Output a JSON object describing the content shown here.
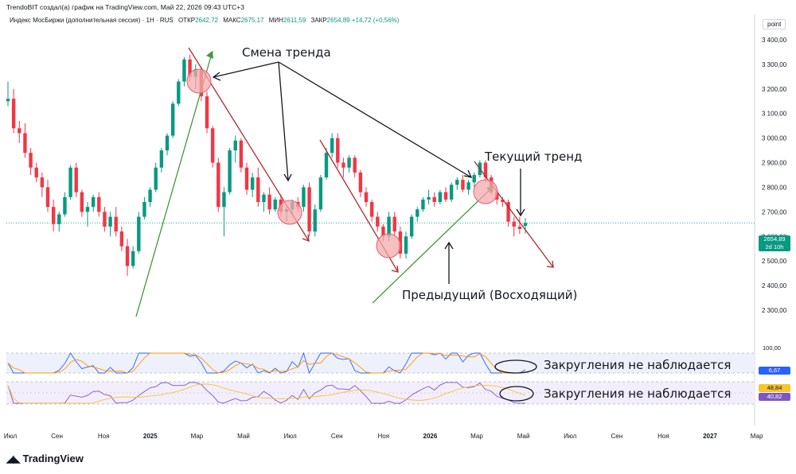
{
  "header": {
    "credit": "TrendoBIT создал(а) график на TradingView.com, Май 22, 2026 09:43 UTC+3",
    "symbol": "Индекс МосБиржи (дополнительная сессия) · 1Н · RUS",
    "open_label": "ОТКР",
    "open": "2642,72",
    "high_label": "МАКС",
    "high": "2675,17",
    "low_label": "МИН",
    "low": "2611,59",
    "close_label": "ЗАКР",
    "close": "2654,89",
    "change": "+14,72 (+0,56%)"
  },
  "axis_unit": "point",
  "annotations": {
    "trend_change": "Смена тренда",
    "current_trend": "Текущий тренд",
    "previous_trend": "Предыдущий (Восходящий)",
    "no_rounding_1": "Закругления не наблюдается",
    "no_rounding_2": "Закругления не наблюдается"
  },
  "badges": {
    "last_price": "2654,89",
    "last_time": "2d 10h",
    "stoch_level": "100,00",
    "stoch_value": "6,67",
    "rsi_value_1": "48,84",
    "rsi_value_2": "40,82"
  },
  "colors": {
    "up": "#089981",
    "down": "#f23645",
    "trend_red": "#b22a2e",
    "trend_green": "#3f9a3a",
    "stoch_blue": "#2962ff",
    "stoch_orange": "#ff9800",
    "rsi_purple": "#7e57c2",
    "rsi_yellow": "#f7c52d"
  },
  "branding": {
    "logo": "TradingView",
    "logo_icon": "tradingview-logo-icon"
  },
  "chart_data": {
    "type": "candlestick",
    "y_ticks": [
      "3 400,00",
      "3 300,00",
      "3 200,00",
      "3 100,00",
      "3 000,00",
      "2 900,00",
      "2 800,00",
      "2 700,00",
      "2 600,00",
      "2 500,00",
      "2 400,00",
      "2 300,00"
    ],
    "ylim": [
      2260,
      3430
    ],
    "x_ticks": [
      {
        "label": "Июл",
        "bold": false
      },
      {
        "label": "Сен",
        "bold": false
      },
      {
        "label": "Ноя",
        "bold": false
      },
      {
        "label": "2025",
        "bold": true
      },
      {
        "label": "Мар",
        "bold": false
      },
      {
        "label": "Май",
        "bold": false
      },
      {
        "label": "Июл",
        "bold": false
      },
      {
        "label": "Сен",
        "bold": false
      },
      {
        "label": "Ноя",
        "bold": false
      },
      {
        "label": "2026",
        "bold": true
      },
      {
        "label": "Мар",
        "bold": false
      },
      {
        "label": "Май",
        "bold": false
      },
      {
        "label": "Июл",
        "bold": false
      },
      {
        "label": "Сен",
        "bold": false
      },
      {
        "label": "Ноя",
        "bold": false
      },
      {
        "label": "2027",
        "bold": true
      },
      {
        "label": "Мар",
        "bold": false
      }
    ],
    "candles": [
      [
        3150,
        3230,
        3130,
        3160
      ],
      [
        3160,
        3200,
        3020,
        3040
      ],
      [
        3040,
        3070,
        2980,
        3020
      ],
      [
        3020,
        3060,
        2920,
        2940
      ],
      [
        2940,
        2960,
        2850,
        2880
      ],
      [
        2880,
        2900,
        2820,
        2840
      ],
      [
        2840,
        2860,
        2760,
        2800
      ],
      [
        2800,
        2830,
        2700,
        2720
      ],
      [
        2720,
        2750,
        2620,
        2650
      ],
      [
        2650,
        2700,
        2620,
        2690
      ],
      [
        2690,
        2780,
        2680,
        2760
      ],
      [
        2760,
        2890,
        2750,
        2880
      ],
      [
        2880,
        2900,
        2760,
        2780
      ],
      [
        2780,
        2790,
        2680,
        2700
      ],
      [
        2700,
        2740,
        2640,
        2720
      ],
      [
        2720,
        2770,
        2700,
        2760
      ],
      [
        2760,
        2780,
        2680,
        2700
      ],
      [
        2700,
        2720,
        2620,
        2640
      ],
      [
        2640,
        2700,
        2600,
        2680
      ],
      [
        2680,
        2720,
        2600,
        2620
      ],
      [
        2620,
        2640,
        2540,
        2560
      ],
      [
        2560,
        2590,
        2440,
        2480
      ],
      [
        2480,
        2560,
        2470,
        2540
      ],
      [
        2540,
        2700,
        2530,
        2680
      ],
      [
        2680,
        2760,
        2670,
        2740
      ],
      [
        2740,
        2800,
        2720,
        2790
      ],
      [
        2790,
        2900,
        2780,
        2880
      ],
      [
        2880,
        2960,
        2860,
        2950
      ],
      [
        2950,
        3020,
        2930,
        3010
      ],
      [
        3010,
        3150,
        3000,
        3140
      ],
      [
        3140,
        3240,
        3130,
        3230
      ],
      [
        3230,
        3330,
        3210,
        3320
      ],
      [
        3320,
        3340,
        3230,
        3250
      ],
      [
        3250,
        3300,
        3200,
        3280
      ],
      [
        3280,
        3290,
        3150,
        3170
      ],
      [
        3170,
        3190,
        3020,
        3040
      ],
      [
        3040,
        3050,
        2880,
        2900
      ],
      [
        2900,
        2920,
        2700,
        2720
      ],
      [
        2720,
        2800,
        2600,
        2780
      ],
      [
        2780,
        2960,
        2770,
        2950
      ],
      [
        2950,
        3010,
        2900,
        2990
      ],
      [
        2990,
        3000,
        2860,
        2880
      ],
      [
        2880,
        2900,
        2770,
        2790
      ],
      [
        2790,
        2860,
        2760,
        2840
      ],
      [
        2840,
        2880,
        2720,
        2740
      ],
      [
        2740,
        2780,
        2700,
        2770
      ],
      [
        2770,
        2800,
        2690,
        2710
      ],
      [
        2710,
        2760,
        2700,
        2750
      ],
      [
        2750,
        2770,
        2680,
        2700
      ],
      [
        2700,
        2720,
        2660,
        2710
      ],
      [
        2710,
        2750,
        2690,
        2740
      ],
      [
        2740,
        2760,
        2700,
        2720
      ],
      [
        2720,
        2810,
        2700,
        2800
      ],
      [
        2800,
        2820,
        2600,
        2620
      ],
      [
        2620,
        2730,
        2600,
        2710
      ],
      [
        2710,
        2850,
        2700,
        2840
      ],
      [
        2840,
        2960,
        2830,
        2940
      ],
      [
        2940,
        3020,
        2920,
        3000
      ],
      [
        3000,
        3020,
        2880,
        2900
      ],
      [
        2900,
        2920,
        2840,
        2880
      ],
      [
        2880,
        2930,
        2860,
        2920
      ],
      [
        2920,
        2930,
        2840,
        2860
      ],
      [
        2860,
        2870,
        2760,
        2780
      ],
      [
        2780,
        2800,
        2720,
        2740
      ],
      [
        2740,
        2750,
        2660,
        2680
      ],
      [
        2680,
        2700,
        2620,
        2640
      ],
      [
        2640,
        2650,
        2580,
        2600
      ],
      [
        2600,
        2700,
        2580,
        2680
      ],
      [
        2680,
        2700,
        2600,
        2620
      ],
      [
        2620,
        2640,
        2510,
        2530
      ],
      [
        2530,
        2620,
        2510,
        2600
      ],
      [
        2600,
        2690,
        2590,
        2680
      ],
      [
        2680,
        2720,
        2660,
        2710
      ],
      [
        2710,
        2760,
        2700,
        2750
      ],
      [
        2750,
        2790,
        2730,
        2760
      ],
      [
        2760,
        2780,
        2720,
        2740
      ],
      [
        2740,
        2790,
        2730,
        2780
      ],
      [
        2780,
        2800,
        2740,
        2750
      ],
      [
        2750,
        2820,
        2740,
        2810
      ],
      [
        2810,
        2840,
        2790,
        2830
      ],
      [
        2830,
        2850,
        2780,
        2790
      ],
      [
        2790,
        2830,
        2770,
        2820
      ],
      [
        2820,
        2860,
        2800,
        2850
      ],
      [
        2850,
        2910,
        2840,
        2900
      ],
      [
        2900,
        2910,
        2820,
        2840
      ],
      [
        2840,
        2850,
        2770,
        2780
      ],
      [
        2780,
        2790,
        2730,
        2750
      ],
      [
        2750,
        2760,
        2720,
        2740
      ],
      [
        2740,
        2750,
        2640,
        2660
      ],
      [
        2660,
        2680,
        2600,
        2640
      ],
      [
        2640,
        2680,
        2610,
        2630
      ],
      [
        2642.72,
        2675.17,
        2611.59,
        2654.89
      ]
    ],
    "stoch_range": [
      0,
      100
    ],
    "rsi_range": [
      20,
      80
    ]
  }
}
